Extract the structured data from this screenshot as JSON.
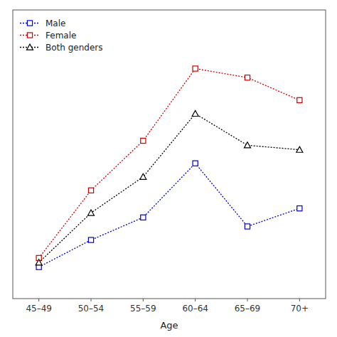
{
  "chart_data": {
    "type": "line",
    "xlabel": "Age",
    "categories": [
      "45–49",
      "50–54",
      "55–59",
      "60–64",
      "65–69",
      "70+"
    ],
    "series": [
      {
        "name": "Male",
        "color": "#0000cc",
        "marker": "square",
        "line_style": "dotted",
        "values": [
          0.055,
          0.085,
          0.11,
          0.17,
          0.1,
          0.12
        ]
      },
      {
        "name": "Female",
        "color": "#cc0000",
        "marker": "square",
        "line_style": "dotted",
        "values": [
          0.065,
          0.14,
          0.195,
          0.275,
          0.265,
          0.24
        ]
      },
      {
        "name": "Both genders",
        "color": "#000000",
        "marker": "triangle",
        "line_style": "dotted",
        "values": [
          0.06,
          0.115,
          0.155,
          0.225,
          0.19,
          0.185
        ]
      }
    ],
    "ylim": [
      0.02,
      0.34
    ],
    "tick_labels": "x",
    "grid": false,
    "legend": "upper left"
  }
}
